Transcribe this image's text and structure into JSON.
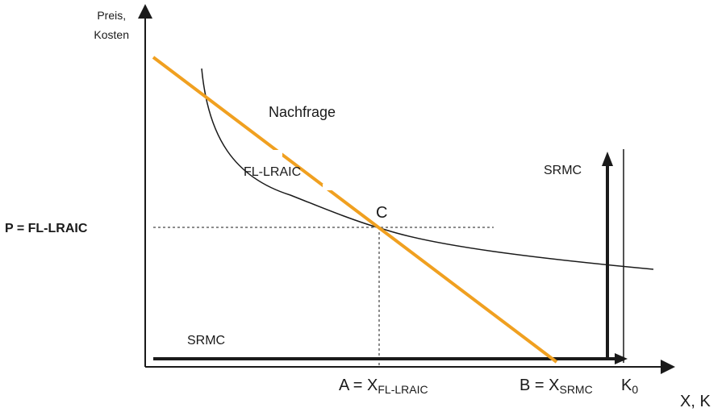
{
  "y_axis_label_line1": "Preis,",
  "y_axis_label_line2": "Kosten",
  "x_axis_label": "X, K",
  "price_level_label": "P = FL-LRAIC",
  "demand_label": "Nachfrage",
  "lraic_curve_label": "FL-LRAIC",
  "srmc_vertical_label": "SRMC",
  "srmc_horizontal_label": "SRMC",
  "intersection_label": "C",
  "point_a": {
    "prefix": "A = X",
    "subscript": "FL-LRAIC"
  },
  "point_b": {
    "prefix": "B = X",
    "subscript": "SRMC"
  },
  "capacity": {
    "base": "K",
    "subscript": "0"
  },
  "colors": {
    "demand": "#f0a020",
    "curve": "#1a1a1a",
    "axis": "#1a1a1a"
  }
}
